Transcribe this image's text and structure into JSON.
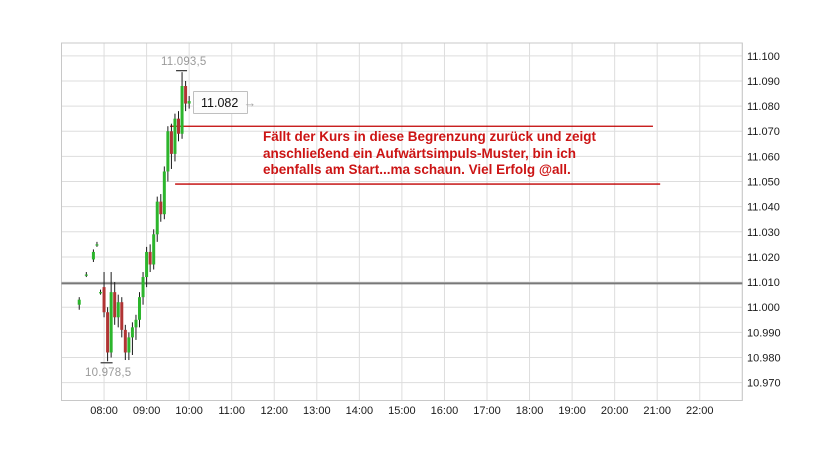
{
  "chart_data": {
    "type": "candlestick",
    "title": "",
    "grid": true,
    "x_axis": {
      "range_hours": [
        7,
        23
      ],
      "tick_hours": [
        8,
        9,
        10,
        11,
        12,
        13,
        14,
        15,
        16,
        17,
        18,
        19,
        20,
        21,
        22
      ],
      "tick_labels": [
        "08:00",
        "09:00",
        "10:00",
        "11:00",
        "12:00",
        "13:00",
        "14:00",
        "15:00",
        "16:00",
        "17:00",
        "18:00",
        "19:00",
        "20:00",
        "21:00",
        "22:00"
      ]
    },
    "y_axis": {
      "side": "right",
      "range": [
        10.9629,
        11.1051
      ],
      "tick_values": [
        11.1,
        11.09,
        11.08,
        11.07,
        11.06,
        11.05,
        11.04,
        11.03,
        11.02,
        11.01,
        11.0,
        10.99,
        10.98,
        10.97
      ],
      "tick_labels": [
        "11.100",
        "11.090",
        "11.080",
        "11.070",
        "11.060",
        "11.050",
        "11.040",
        "11.030",
        "11.020",
        "11.010",
        "11.000",
        "10.990",
        "10.980",
        "10.970"
      ]
    },
    "series": [
      {
        "time": "07:25",
        "open": 11.001,
        "high": 11.004,
        "low": 10.999,
        "close": 11.003
      },
      {
        "time": "07:35",
        "open": 11.013,
        "high": 11.014,
        "low": 11.012,
        "close": 11.013
      },
      {
        "time": "07:45",
        "open": 11.019,
        "high": 11.023,
        "low": 11.018,
        "close": 11.022
      },
      {
        "time": "07:50",
        "open": 11.025,
        "high": 11.026,
        "low": 11.024,
        "close": 11.025
      },
      {
        "time": "07:55",
        "open": 11.006,
        "high": 11.007,
        "low": 11.005,
        "close": 11.006
      },
      {
        "time": "08:00",
        "open": 11.008,
        "high": 11.014,
        "low": 10.996,
        "close": 10.998
      },
      {
        "time": "08:05",
        "open": 10.998,
        "high": 11.0,
        "low": 10.9785,
        "close": 10.982
      },
      {
        "time": "08:10",
        "open": 10.982,
        "high": 11.014,
        "low": 10.98,
        "close": 11.006
      },
      {
        "time": "08:15",
        "open": 11.006,
        "high": 11.01,
        "low": 10.993,
        "close": 10.996
      },
      {
        "time": "08:20",
        "open": 10.996,
        "high": 11.005,
        "low": 10.992,
        "close": 11.002
      },
      {
        "time": "08:25",
        "open": 11.002,
        "high": 11.004,
        "low": 10.988,
        "close": 10.991
      },
      {
        "time": "08:30",
        "open": 10.991,
        "high": 10.993,
        "low": 10.979,
        "close": 10.982
      },
      {
        "time": "08:35",
        "open": 10.982,
        "high": 10.99,
        "low": 10.979,
        "close": 10.988
      },
      {
        "time": "08:40",
        "open": 10.988,
        "high": 10.994,
        "low": 10.981,
        "close": 10.992
      },
      {
        "time": "08:45",
        "open": 10.992,
        "high": 10.997,
        "low": 10.987,
        "close": 10.995
      },
      {
        "time": "08:50",
        "open": 10.995,
        "high": 11.006,
        "low": 10.992,
        "close": 11.004
      },
      {
        "time": "08:55",
        "open": 11.004,
        "high": 11.014,
        "low": 11.001,
        "close": 11.012
      },
      {
        "time": "09:00",
        "open": 11.012,
        "high": 11.024,
        "low": 11.008,
        "close": 11.022
      },
      {
        "time": "09:05",
        "open": 11.022,
        "high": 11.025,
        "low": 11.014,
        "close": 11.017
      },
      {
        "time": "09:10",
        "open": 11.017,
        "high": 11.031,
        "low": 11.015,
        "close": 11.029
      },
      {
        "time": "09:15",
        "open": 11.029,
        "high": 11.044,
        "low": 11.026,
        "close": 11.042
      },
      {
        "time": "09:20",
        "open": 11.042,
        "high": 11.045,
        "low": 11.034,
        "close": 11.037
      },
      {
        "time": "09:25",
        "open": 11.037,
        "high": 11.056,
        "low": 11.035,
        "close": 11.054
      },
      {
        "time": "09:30",
        "open": 11.054,
        "high": 11.072,
        "low": 11.05,
        "close": 11.07
      },
      {
        "time": "09:35",
        "open": 11.07,
        "high": 11.073,
        "low": 11.055,
        "close": 11.061
      },
      {
        "time": "09:40",
        "open": 11.061,
        "high": 11.077,
        "low": 11.058,
        "close": 11.075
      },
      {
        "time": "09:45",
        "open": 11.075,
        "high": 11.078,
        "low": 11.066,
        "close": 11.069
      },
      {
        "time": "09:50",
        "open": 11.069,
        "high": 11.0935,
        "low": 11.067,
        "close": 11.088
      },
      {
        "time": "09:55",
        "open": 11.088,
        "high": 11.09,
        "low": 11.078,
        "close": 11.081
      },
      {
        "time": "10:00",
        "open": 11.081,
        "high": 11.084,
        "low": 11.079,
        "close": 11.082
      }
    ],
    "high_marker": {
      "time": "09:50",
      "value": 11.0935,
      "label": "11.093,5"
    },
    "low_marker": {
      "time": "08:05",
      "value": 10.9785,
      "label": "10.978,5"
    },
    "last_price": {
      "value": 11.082,
      "label": "11.082",
      "arrow_icon": "→"
    },
    "reference_line": {
      "value": 11.0095
    },
    "range_lines": [
      {
        "value": 11.072,
        "from_hour": 9.55,
        "to_hour": 20.9
      },
      {
        "value": 11.049,
        "from_hour": 9.67,
        "to_hour": 21.07
      }
    ],
    "colors": {
      "up": "#2cb52c",
      "down": "#b03434",
      "wick": "#1a1a1a",
      "grid": "#dddddd",
      "plot_border": "#c8c8c8",
      "axis_text": "#1a1a1a",
      "muted_label": "#9a9a9a",
      "reference_line": "#787878",
      "range_line": "#c00000",
      "annotation": "#cc1414"
    }
  },
  "annotation": {
    "line1": "Fällt der Kurs in diese Begrenzung zurück und zeigt",
    "line2": "anschließend ein Aufwärtsimpuls-Muster, bin ich",
    "line3": "ebenfalls am Start...ma schaun. Viel Erfolg @all."
  }
}
